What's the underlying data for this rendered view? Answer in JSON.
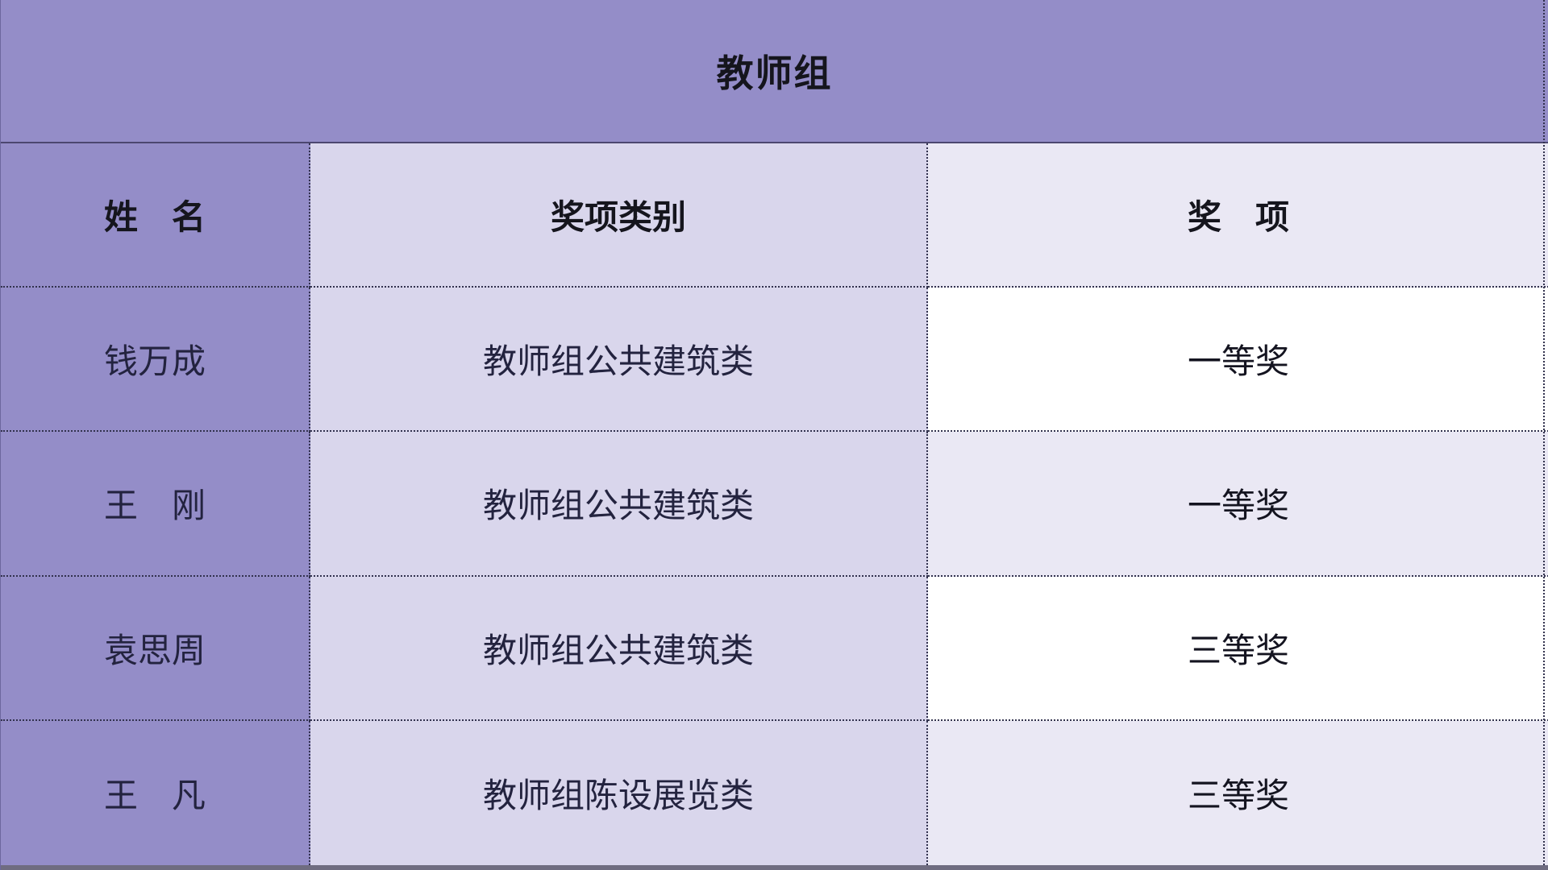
{
  "title": "教师组",
  "columns": [
    {
      "label": "姓　名"
    },
    {
      "label": "奖项类别"
    },
    {
      "label": "奖　项"
    }
  ],
  "rows": [
    {
      "name": "钱万成",
      "category": "教师组公共建筑类",
      "award": "一等奖"
    },
    {
      "name": "王　刚",
      "category": "教师组公共建筑类",
      "award": "一等奖"
    },
    {
      "name": "袁思周",
      "category": "教师组公共建筑类",
      "award": "三等奖"
    },
    {
      "name": "王　凡",
      "category": "教师组陈设展览类",
      "award": "三等奖"
    }
  ],
  "colors": {
    "band_purple": "#948dc8",
    "col2_lavender": "#d9d6ec",
    "col3_tint": "#eae8f4",
    "col3_white": "#ffffff",
    "title_divider": "#4c4770",
    "dotted_border": "#32324e",
    "bottom_strip": "#6f6c80",
    "title_text": "#15151d",
    "body_text": "#23233f"
  }
}
